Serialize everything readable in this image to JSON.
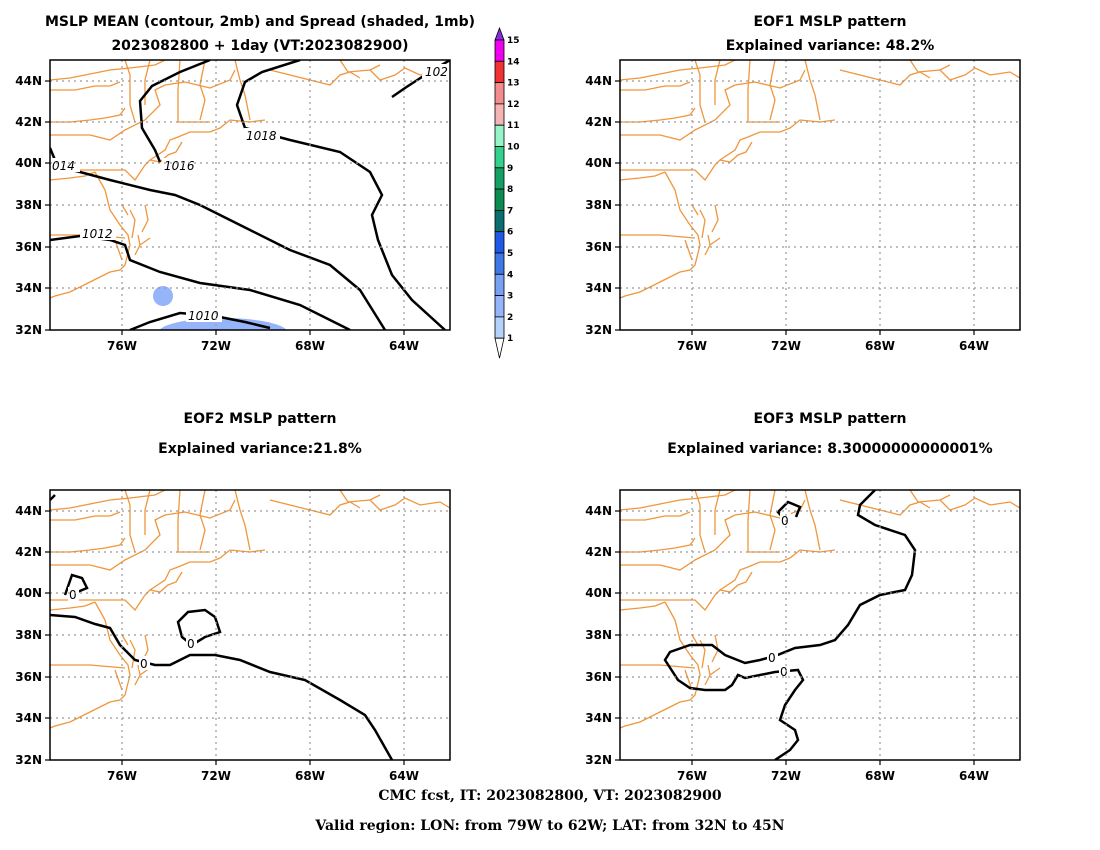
{
  "panels": [
    {
      "title_line1": "MSLP MEAN (contour, 2mb) and Spread (shaded, 1mb)",
      "title_line2": "2023082800 + 1day (VT:2023082900)"
    },
    {
      "title_line1": "EOF1 MSLP pattern",
      "title_line2": "Explained variance: 48.2%"
    },
    {
      "title_line1": "EOF2 MSLP pattern",
      "title_line2": "Explained variance:21.8%"
    },
    {
      "title_line1": "EOF3 MSLP pattern",
      "title_line2": "Explained variance: 8.30000000000001%"
    }
  ],
  "axes": {
    "lon_ticks": [
      "76W",
      "72W",
      "68W",
      "64W"
    ],
    "lat_ticks": [
      "44N",
      "42N",
      "40N",
      "38N",
      "36N",
      "34N",
      "32N"
    ]
  },
  "contour_labels": {
    "mean": [
      "102",
      "1018",
      "014",
      "1016",
      "1012",
      "1010"
    ],
    "zero": "0"
  },
  "colorbar": {
    "ticks": [
      "1",
      "2",
      "3",
      "4",
      "5",
      "6",
      "7",
      "8",
      "9",
      "10",
      "11",
      "12",
      "13",
      "14",
      "15"
    ],
    "colors": [
      "#b4d3fa",
      "#96b4fa",
      "#78a0f5",
      "#3c78e6",
      "#1e5ae6",
      "#0a6e6e",
      "#0a8c50",
      "#14a064",
      "#32d28c",
      "#96f5c8",
      "#f5b4b4",
      "#f58c8c",
      "#f03232",
      "#f000f0",
      "#8a2be2"
    ]
  },
  "coast_color": "#f0963c",
  "footer": {
    "line1": "CMC fcst, IT: 2023082800, VT: 2023082900",
    "line2": "Valid region: LON: from 79W to 62W; LAT: from 32N to 45N"
  }
}
